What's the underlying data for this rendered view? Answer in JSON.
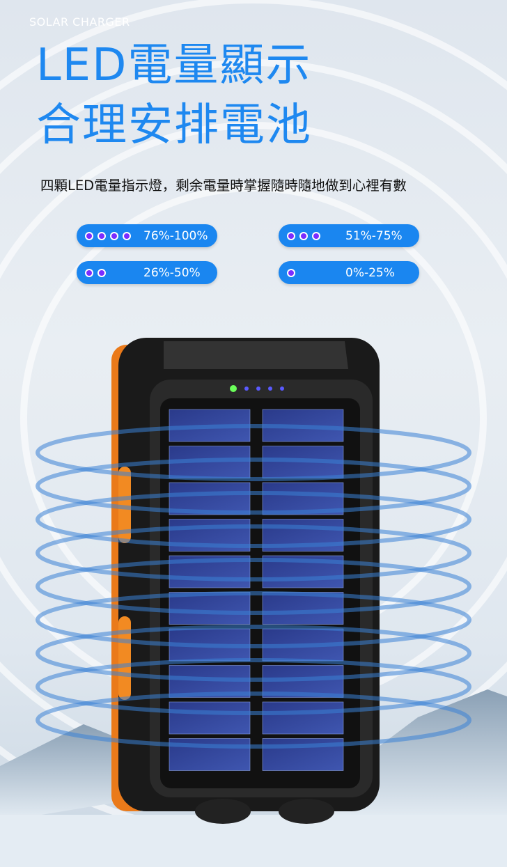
{
  "header": {
    "eyebrow": "SOLAR CHARGER",
    "title_line1": "LED電量顯示",
    "title_line2": "合理安排電池",
    "subtitle": "四顆LED電量指示燈，剩余電量時掌握隨時隨地做到心裡有數"
  },
  "indicators": [
    {
      "dots": 4,
      "label": "76%-100%"
    },
    {
      "dots": 3,
      "label": "51%-75%"
    },
    {
      "dots": 2,
      "label": "26%-50%"
    },
    {
      "dots": 1,
      "label": "0%-25%"
    }
  ]
}
